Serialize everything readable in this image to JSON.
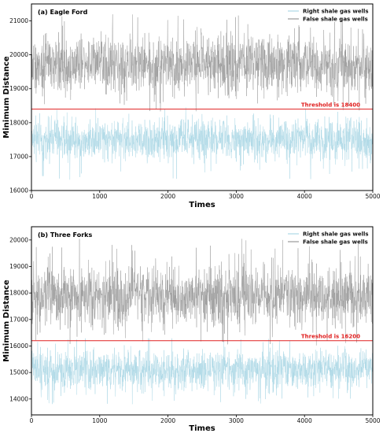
{
  "colors": {
    "right_series": "#add8e6",
    "false_series": "#9a9a9a",
    "threshold": "#e02020"
  },
  "chart_data": [
    {
      "type": "line",
      "title": "(a) Eagle Ford",
      "xlabel": "Times",
      "ylabel": "Minimum Distance",
      "xlim": [
        0,
        5000
      ],
      "ylim": [
        16000,
        21500
      ],
      "xticks": [
        0,
        1000,
        2000,
        3000,
        4000,
        5000
      ],
      "yticks": [
        16000,
        17000,
        18000,
        19000,
        20000,
        21000
      ],
      "legend_position": "top-right",
      "grid": false,
      "series": [
        {
          "name": "Right shale gas wells",
          "color": "#add8e6",
          "center": 17500,
          "range": [
            16300,
            18500
          ]
        },
        {
          "name": "False shale gas wells",
          "color": "#9a9a9a",
          "center": 19700,
          "range": [
            18300,
            21200
          ]
        }
      ],
      "threshold": {
        "value": 18400,
        "label": "Threshold is 18400"
      }
    },
    {
      "type": "line",
      "title": "(b) Three Forks",
      "xlabel": "Times",
      "ylabel": "Minimum Distance",
      "xlim": [
        0,
        5000
      ],
      "ylim": [
        13400,
        20500
      ],
      "xticks": [
        0,
        1000,
        2000,
        3000,
        4000,
        5000
      ],
      "yticks": [
        14000,
        15000,
        16000,
        17000,
        18000,
        19000,
        20000
      ],
      "legend_position": "top-right",
      "grid": false,
      "series": [
        {
          "name": "Right shale gas wells",
          "color": "#add8e6",
          "center": 15100,
          "range": [
            13800,
            16300
          ]
        },
        {
          "name": "False shale gas wells",
          "color": "#9a9a9a",
          "center": 17900,
          "range": [
            16000,
            20200
          ]
        }
      ],
      "threshold": {
        "value": 16200,
        "label": "Threshold is 16200"
      }
    }
  ]
}
